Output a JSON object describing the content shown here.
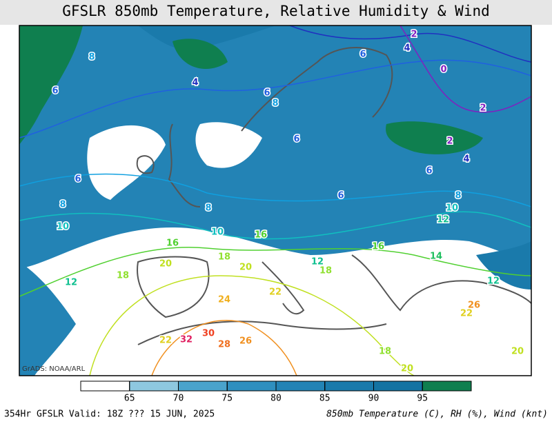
{
  "header": {
    "title": "GFSLR 850mb Temperature, Relative Humidity & Wind"
  },
  "colorbar": {
    "ticks": [
      65,
      70,
      75,
      80,
      85,
      90,
      95
    ],
    "colors": [
      "#ffffff",
      "#8ec8e0",
      "#4aa3cc",
      "#2f8fbf",
      "#2383b5",
      "#1a7aab",
      "#1473a2",
      "#0f7f4f"
    ]
  },
  "map": {
    "credit": "GrADS: NOAA/ARL",
    "contour_labels": [
      {
        "label": "8",
        "color": "#10a0e0"
      },
      {
        "label": "6",
        "color": "#2060e0"
      },
      {
        "label": "6",
        "color": "#2060e0"
      },
      {
        "label": "8",
        "color": "#10a0e0"
      },
      {
        "label": "10",
        "color": "#10c0c0"
      },
      {
        "label": "12",
        "color": "#10c090"
      },
      {
        "label": "4",
        "color": "#2030c0"
      },
      {
        "label": "6",
        "color": "#2060e0"
      },
      {
        "label": "8",
        "color": "#10a0e0"
      },
      {
        "label": "6",
        "color": "#2060e0"
      },
      {
        "label": "4",
        "color": "#2030c0"
      },
      {
        "label": "2",
        "color": "#8020c0"
      },
      {
        "label": "0",
        "color": "#8020c0"
      },
      {
        "label": "2",
        "color": "#8020c0"
      },
      {
        "label": "2",
        "color": "#8020c0"
      },
      {
        "label": "4",
        "color": "#2030c0"
      },
      {
        "label": "6",
        "color": "#2060e0"
      },
      {
        "label": "8",
        "color": "#10a0e0"
      },
      {
        "label": "6",
        "color": "#2060e0"
      },
      {
        "label": "6",
        "color": "#2060e0"
      },
      {
        "label": "8",
        "color": "#10a0e0"
      },
      {
        "label": "10",
        "color": "#10c0c0"
      },
      {
        "label": "10",
        "color": "#10c0c0"
      },
      {
        "label": "12",
        "color": "#10c090"
      },
      {
        "label": "14",
        "color": "#20c060"
      },
      {
        "label": "16",
        "color": "#50d030"
      },
      {
        "label": "16",
        "color": "#50d030"
      },
      {
        "label": "18",
        "color": "#90e030"
      },
      {
        "label": "20",
        "color": "#c0e020"
      },
      {
        "label": "20",
        "color": "#c0e020"
      },
      {
        "label": "18",
        "color": "#90e030"
      },
      {
        "label": "22",
        "color": "#e0d020"
      },
      {
        "label": "24",
        "color": "#f0b020"
      },
      {
        "label": "30",
        "color": "#f04020"
      },
      {
        "label": "32",
        "color": "#e02060"
      },
      {
        "label": "28",
        "color": "#f07020"
      },
      {
        "label": "26",
        "color": "#f09020"
      },
      {
        "label": "22",
        "color": "#e0d020"
      },
      {
        "label": "18",
        "color": "#90e030"
      },
      {
        "label": "20",
        "color": "#c0e020"
      },
      {
        "label": "26",
        "color": "#f09020"
      },
      {
        "label": "22",
        "color": "#e0d020"
      },
      {
        "label": "20",
        "color": "#c0e020"
      },
      {
        "label": "12",
        "color": "#10c090"
      },
      {
        "label": "16",
        "color": "#50d030"
      },
      {
        "label": "18",
        "color": "#90e030"
      },
      {
        "label": "12",
        "color": "#10c090"
      }
    ]
  },
  "footer": {
    "left": "354Hr GFSLR Valid: 18Z ??? 15 JUN, 2025",
    "right": "850mb Temperature (C), RH (%), Wind (knt)"
  }
}
